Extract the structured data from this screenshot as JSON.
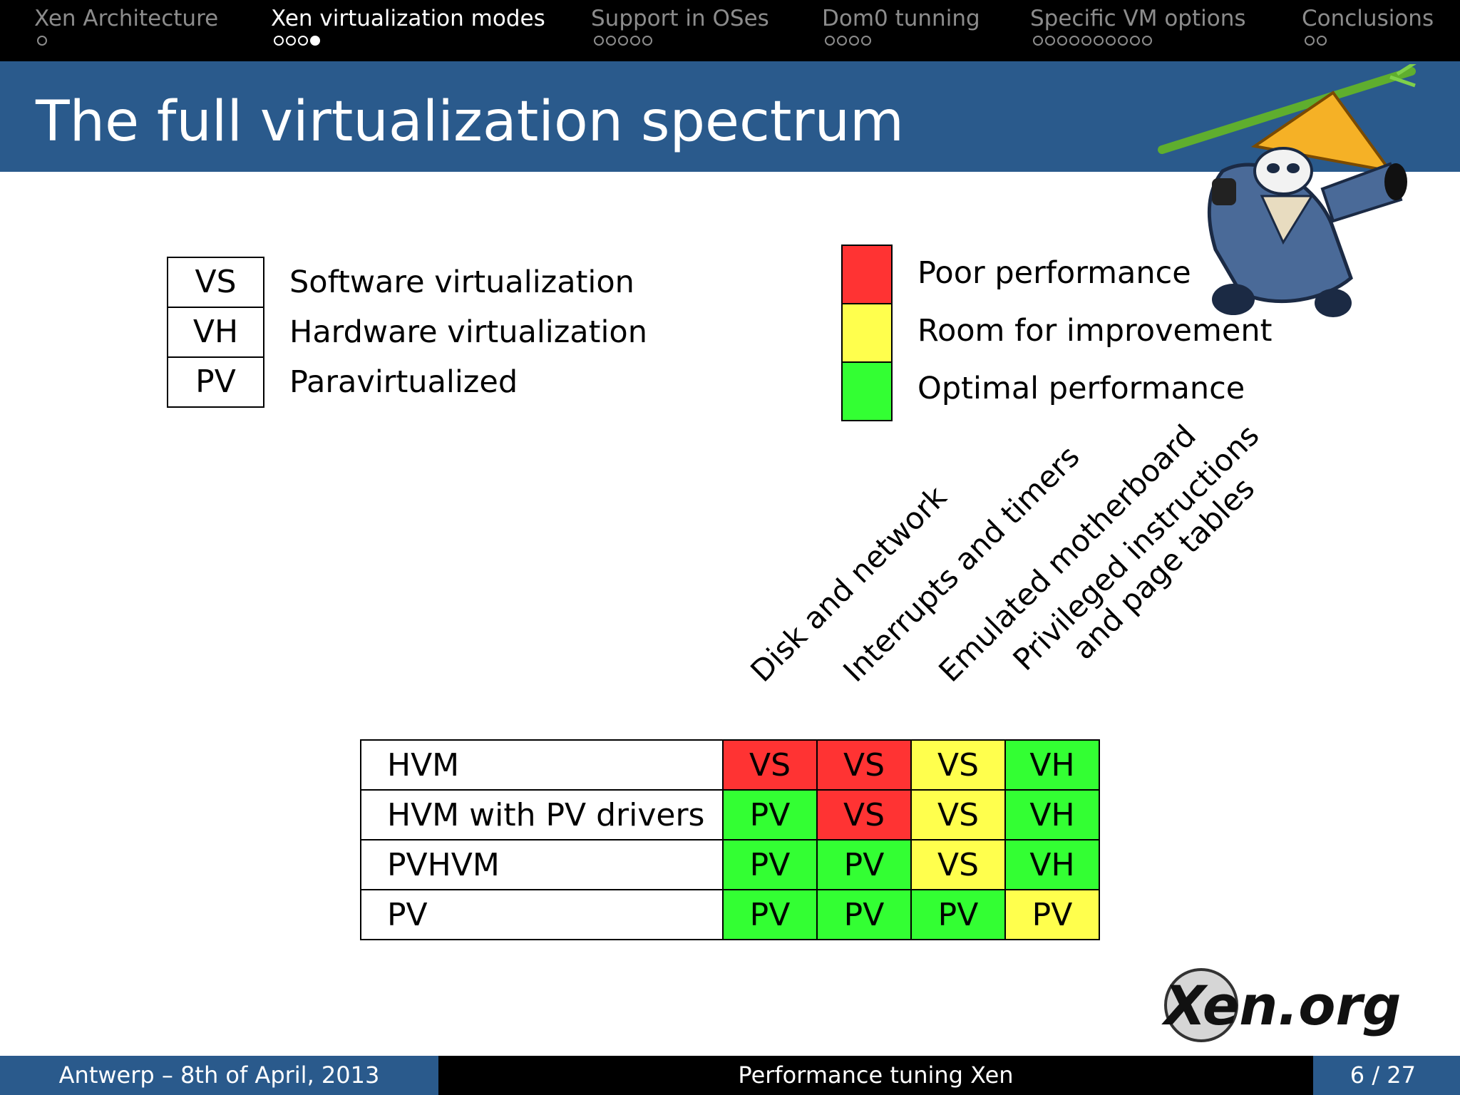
{
  "nav": {
    "sections": [
      {
        "title": "Xen Architecture",
        "dots": 1,
        "current": -1
      },
      {
        "title": "Xen virtualization modes",
        "dots": 4,
        "current": 3
      },
      {
        "title": "Support in OSes",
        "dots": 5,
        "current": -1
      },
      {
        "title": "Dom0 tunning",
        "dots": 4,
        "current": -1
      },
      {
        "title": "Specific VM options",
        "dots": 10,
        "current": -1
      },
      {
        "title": "Conclusions",
        "dots": 2,
        "current": -1
      }
    ]
  },
  "slide": {
    "title": "The full virtualization spectrum"
  },
  "legend": {
    "modes": [
      {
        "abbr": "VS",
        "desc": "Software virtualization"
      },
      {
        "abbr": "VH",
        "desc": "Hardware virtualization"
      },
      {
        "abbr": "PV",
        "desc": "Paravirtualized"
      }
    ],
    "performance": [
      {
        "label": "Poor performance",
        "color": "#ff3333"
      },
      {
        "label": "Room for improvement",
        "color": "#ffff4d"
      },
      {
        "label": "Optimal performance",
        "color": "#33ff33"
      }
    ]
  },
  "matrix": {
    "columns": [
      {
        "line1": "Disk and network",
        "line2": ""
      },
      {
        "line1": "Interrupts and timers",
        "line2": ""
      },
      {
        "line1": "Emulated motherboard",
        "line2": ""
      },
      {
        "line1": "Privileged instructions",
        "line2": "and page tables"
      }
    ],
    "rows": [
      {
        "name": "HVM",
        "cells": [
          {
            "value": "VS",
            "level": "poor"
          },
          {
            "value": "VS",
            "level": "poor"
          },
          {
            "value": "VS",
            "level": "improve"
          },
          {
            "value": "VH",
            "level": "optimal"
          }
        ]
      },
      {
        "name": "HVM with PV drivers",
        "cells": [
          {
            "value": "PV",
            "level": "optimal"
          },
          {
            "value": "VS",
            "level": "poor"
          },
          {
            "value": "VS",
            "level": "improve"
          },
          {
            "value": "VH",
            "level": "optimal"
          }
        ]
      },
      {
        "name": "PVHVM",
        "cells": [
          {
            "value": "PV",
            "level": "optimal"
          },
          {
            "value": "PV",
            "level": "optimal"
          },
          {
            "value": "VS",
            "level": "improve"
          },
          {
            "value": "VH",
            "level": "optimal"
          }
        ]
      },
      {
        "name": "PV",
        "cells": [
          {
            "value": "PV",
            "level": "optimal"
          },
          {
            "value": "PV",
            "level": "optimal"
          },
          {
            "value": "PV",
            "level": "optimal"
          },
          {
            "value": "PV",
            "level": "improve"
          }
        ]
      }
    ],
    "level_colors": {
      "poor": "#ff3333",
      "improve": "#ffff4d",
      "optimal": "#33ff33"
    }
  },
  "logo": {
    "text": "Xen.org"
  },
  "footer": {
    "location_date": "Antwerp – 8th of April, 2013",
    "talk_title": "Performance tuning Xen",
    "page": "6 / 27"
  }
}
